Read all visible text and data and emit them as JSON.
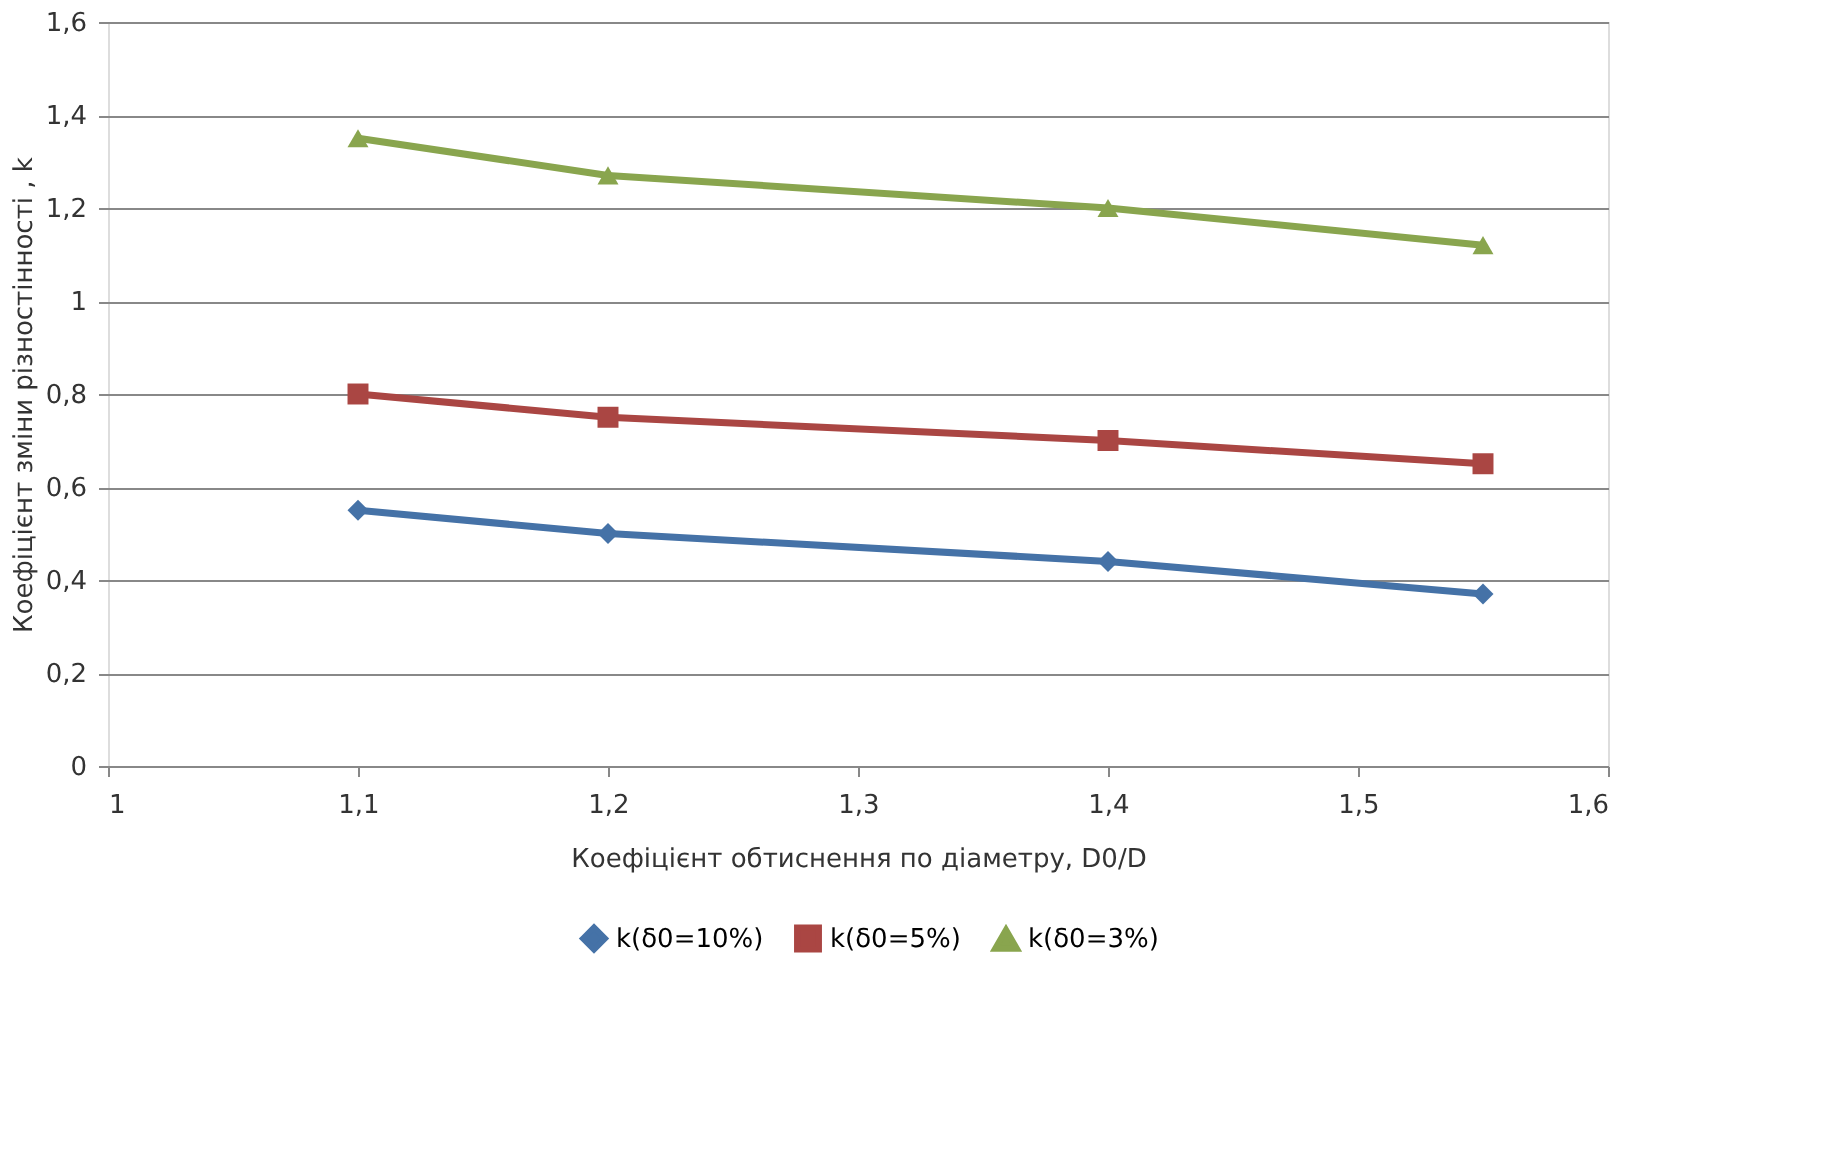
{
  "chart_data": {
    "type": "line",
    "xlabel": "Коефіцієнт обтиснення по діаметру, D0/D",
    "ylabel": "Коефіцієнт зміни різностінності , k",
    "x": [
      1.1,
      1.2,
      1.4,
      1.55
    ],
    "series": [
      {
        "name": "k(δ0=10%)",
        "color": "#4572a7",
        "marker": "diamond",
        "values": [
          0.55,
          0.5,
          0.44,
          0.37
        ]
      },
      {
        "name": "k(δ0=5%)",
        "color": "#aa4643",
        "marker": "square",
        "values": [
          0.8,
          0.75,
          0.7,
          0.65
        ]
      },
      {
        "name": "k(δ0=3%)",
        "color": "#89a54e",
        "marker": "triangle",
        "values": [
          1.35,
          1.27,
          1.2,
          1.12
        ]
      }
    ],
    "xlim": [
      1,
      1.6
    ],
    "xticks": [
      {
        "value": 1,
        "label": "1"
      },
      {
        "value": 1.1,
        "label": "1,1"
      },
      {
        "value": 1.2,
        "label": "1,2"
      },
      {
        "value": 1.3,
        "label": "1,3"
      },
      {
        "value": 1.4,
        "label": "1,4"
      },
      {
        "value": 1.5,
        "label": "1,5"
      },
      {
        "value": 1.6,
        "label": "1,6"
      }
    ],
    "ylim": [
      0,
      1.6
    ],
    "yticks": [
      {
        "value": 0,
        "label": "0"
      },
      {
        "value": 0.2,
        "label": "0,2"
      },
      {
        "value": 0.4,
        "label": "0,4"
      },
      {
        "value": 0.6,
        "label": "0,6"
      },
      {
        "value": 0.8,
        "label": "0,8"
      },
      {
        "value": 1,
        "label": "1"
      },
      {
        "value": 1.2,
        "label": "1,2"
      },
      {
        "value": 1.4,
        "label": "1,4"
      },
      {
        "value": 1.6,
        "label": "1,6"
      }
    ],
    "grid": "y",
    "legend": "bottom",
    "line_style": "solid"
  }
}
